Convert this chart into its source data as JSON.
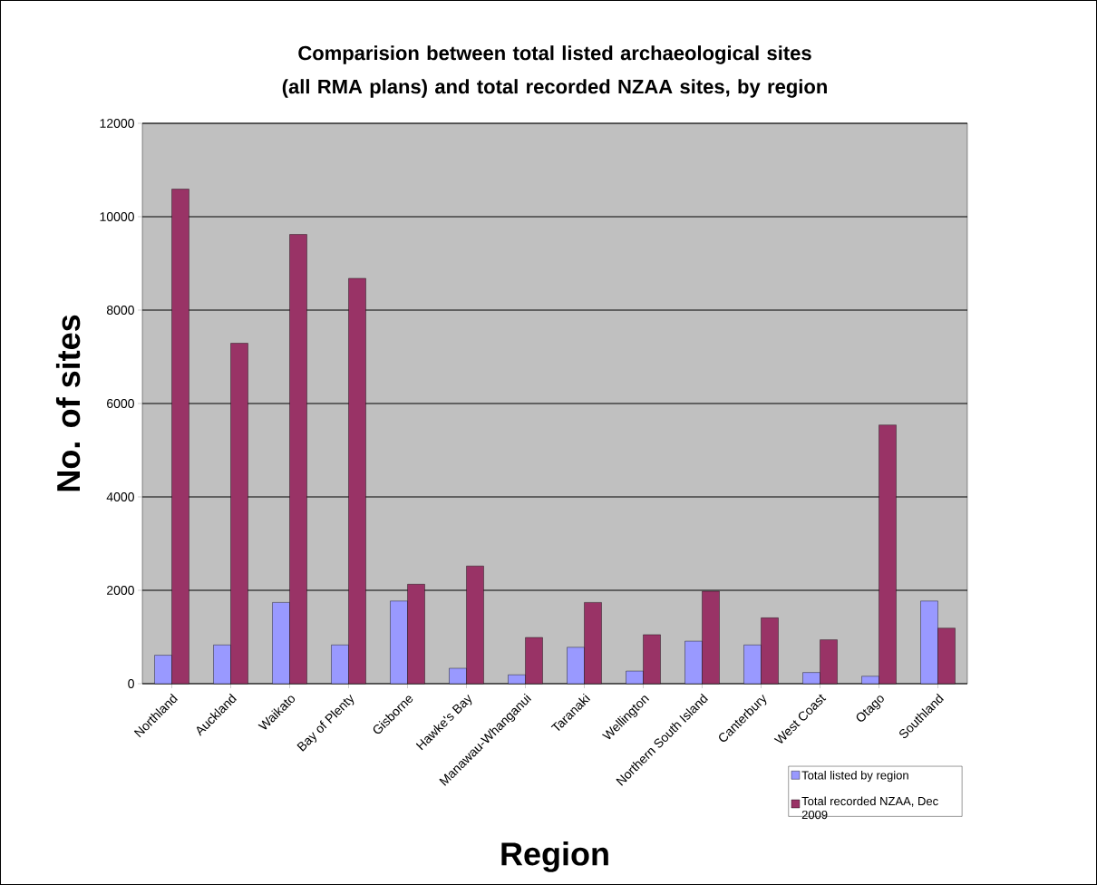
{
  "chart_data": {
    "type": "bar",
    "title": "Comparision between total listed archaeological sites (all RMA plans) and total recorded NZAA sites, by region",
    "xlabel": "Region",
    "ylabel": "No. of sites",
    "categories": [
      "Northland",
      "Auckland",
      "Waikato",
      "Bay of Plenty",
      "Gisborne",
      "Hawke's Bay",
      "Manawau-Whanganui",
      "Taranaki",
      "Wellington",
      "Northern South Island",
      "Canterbury",
      "West Coast",
      "Otago",
      "Southland"
    ],
    "series": [
      {
        "name": "Total listed by region",
        "color": "#9999ff",
        "values": [
          610,
          830,
          1740,
          830,
          1770,
          330,
          190,
          780,
          270,
          910,
          830,
          240,
          160,
          1770
        ]
      },
      {
        "name": "Total recorded NZAA, Dec 2009",
        "color": "#993366",
        "values": [
          10590,
          7290,
          9620,
          8680,
          2130,
          2520,
          990,
          1740,
          1050,
          1980,
          1410,
          940,
          5540,
          1190
        ]
      }
    ],
    "ylim": [
      0,
      12000
    ],
    "yticks": [
      0,
      2000,
      4000,
      6000,
      8000,
      10000,
      12000
    ],
    "grid": "y",
    "legend": "bottom right"
  }
}
